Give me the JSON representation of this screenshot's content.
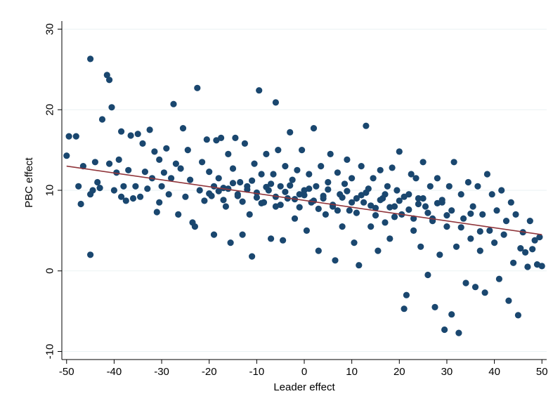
{
  "chart_data": {
    "type": "scatter",
    "title": "",
    "xlabel": "Leader effect",
    "ylabel": "PBC effect",
    "xlim": [
      -51,
      51
    ],
    "ylim": [
      -11,
      31
    ],
    "xticks": [
      -50,
      -40,
      -30,
      -20,
      -10,
      0,
      10,
      20,
      30,
      40,
      50
    ],
    "yticks": [
      -10,
      0,
      10,
      20,
      30
    ],
    "grid": true,
    "legend": "none",
    "colors": {
      "points": "#1a476f",
      "fit_line": "#90353b",
      "grid": "#eaf2f3",
      "axis": "#000000"
    },
    "fit_line": {
      "x": [
        -50,
        50
      ],
      "y": [
        13.0,
        4.5
      ]
    },
    "series": [
      {
        "type": "scatter",
        "points": [
          [
            -50,
            14.3
          ],
          [
            -49.5,
            16.7
          ],
          [
            -48,
            16.7
          ],
          [
            -47.5,
            10.5
          ],
          [
            -47,
            8.3
          ],
          [
            -46.5,
            13
          ],
          [
            -45,
            26.3
          ],
          [
            -45,
            2
          ],
          [
            -45,
            9.5
          ],
          [
            -44.5,
            10
          ],
          [
            -44,
            13.5
          ],
          [
            -43.5,
            11
          ],
          [
            -43,
            10.3
          ],
          [
            -42.5,
            18.8
          ],
          [
            -41.5,
            24.3
          ],
          [
            -41,
            23.7
          ],
          [
            -41,
            13.3
          ],
          [
            -40.5,
            20.3
          ],
          [
            -40,
            10
          ],
          [
            -39.5,
            12.2
          ],
          [
            -39,
            13.8
          ],
          [
            -38.5,
            17.3
          ],
          [
            -38.5,
            9.2
          ],
          [
            -38,
            10.5
          ],
          [
            -37.5,
            8.7
          ],
          [
            -37,
            12.5
          ],
          [
            -36.5,
            16.8
          ],
          [
            -36,
            9
          ],
          [
            -35.5,
            10.5
          ],
          [
            -35,
            17
          ],
          [
            -34.5,
            9.2
          ],
          [
            -34,
            15.8
          ],
          [
            -33.5,
            12.3
          ],
          [
            -33,
            10.2
          ],
          [
            -32.5,
            17.5
          ],
          [
            -32,
            11.5
          ],
          [
            -31.5,
            14.8
          ],
          [
            -31,
            7.3
          ],
          [
            -30.5,
            13.8
          ],
          [
            -30.5,
            8.5
          ],
          [
            -30,
            10.5
          ],
          [
            -29.5,
            12.2
          ],
          [
            -29,
            15.2
          ],
          [
            -28.5,
            9.5
          ],
          [
            -28,
            11.5
          ],
          [
            -27.5,
            20.7
          ],
          [
            -27,
            13.3
          ],
          [
            -26.5,
            7
          ],
          [
            -26,
            12.7
          ],
          [
            -25.5,
            17.7
          ],
          [
            -25,
            9.2
          ],
          [
            -24.5,
            15
          ],
          [
            -24,
            11.3
          ],
          [
            -23.5,
            6
          ],
          [
            -23,
            5.5
          ],
          [
            -22.5,
            22.7
          ],
          [
            -22,
            10
          ],
          [
            -21.5,
            13.5
          ],
          [
            -21,
            8.7
          ],
          [
            -20.5,
            16.3
          ],
          [
            -20,
            12.3
          ],
          [
            -19.5,
            9.3
          ],
          [
            -19,
            4.5
          ],
          [
            -18.5,
            16.2
          ],
          [
            -18,
            11.5
          ],
          [
            -17.5,
            16.5
          ],
          [
            -17,
            10.3
          ],
          [
            -16.5,
            8
          ],
          [
            -16,
            14.5
          ],
          [
            -15.5,
            3.5
          ],
          [
            -15,
            12.7
          ],
          [
            -14.5,
            16.5
          ],
          [
            -14,
            9.3
          ],
          [
            -13.5,
            11
          ],
          [
            -13,
            4.5
          ],
          [
            -12.5,
            15.8
          ],
          [
            -12,
            10.5
          ],
          [
            -11.5,
            7
          ],
          [
            -11,
            1.8
          ],
          [
            -10.5,
            13.3
          ],
          [
            -10,
            9.7
          ],
          [
            -9.5,
            22.4
          ],
          [
            -9,
            12
          ],
          [
            -8.5,
            8.5
          ],
          [
            -8,
            14.5
          ],
          [
            -7.5,
            10
          ],
          [
            -7,
            4
          ],
          [
            -6.5,
            12
          ],
          [
            -6,
            20.9
          ],
          [
            -6,
            8
          ],
          [
            -5.5,
            15
          ],
          [
            -5,
            10.5
          ],
          [
            -4.5,
            3.8
          ],
          [
            -4,
            13
          ],
          [
            -3.5,
            9
          ],
          [
            -3,
            17.2
          ],
          [
            -2.5,
            11.3
          ],
          [
            -2,
            6.5
          ],
          [
            -1.5,
            12.5
          ],
          [
            -1,
            9.5
          ],
          [
            -0.5,
            15
          ],
          [
            0,
            10
          ],
          [
            0.5,
            5
          ],
          [
            1,
            12
          ],
          [
            1.5,
            8.5
          ],
          [
            2,
            17.7
          ],
          [
            2.5,
            10.5
          ],
          [
            3,
            2.5
          ],
          [
            3.5,
            13
          ],
          [
            4,
            9
          ],
          [
            4.5,
            7
          ],
          [
            5,
            11
          ],
          [
            5.5,
            14.5
          ],
          [
            6,
            8
          ],
          [
            6.5,
            1.3
          ],
          [
            7,
            12.2
          ],
          [
            7.5,
            9.5
          ],
          [
            8,
            5.5
          ],
          [
            8.5,
            10.8
          ],
          [
            9,
            13.8
          ],
          [
            9.5,
            7.5
          ],
          [
            10,
            11.5
          ],
          [
            10.5,
            3.5
          ],
          [
            11,
            9
          ],
          [
            11.5,
            0.7
          ],
          [
            12,
            13
          ],
          [
            12.5,
            8.5
          ],
          [
            13,
            18
          ],
          [
            13.5,
            10.2
          ],
          [
            14,
            5.5
          ],
          [
            14.5,
            11.5
          ],
          [
            15,
            7.8
          ],
          [
            15.5,
            2.5
          ],
          [
            16,
            12.5
          ],
          [
            16.5,
            9
          ],
          [
            17,
            6
          ],
          [
            17.5,
            10.5
          ],
          [
            18,
            4
          ],
          [
            18.5,
            12.8
          ],
          [
            19,
            8
          ],
          [
            19.5,
            10
          ],
          [
            20,
            14.8
          ],
          [
            20.5,
            7
          ],
          [
            21,
            -4.7
          ],
          [
            21.5,
            -3
          ],
          [
            22,
            9.5
          ],
          [
            22.5,
            12
          ],
          [
            23,
            5
          ],
          [
            23.5,
            11.5
          ],
          [
            24,
            9
          ],
          [
            24.5,
            3
          ],
          [
            25,
            13.5
          ],
          [
            25.5,
            8
          ],
          [
            26,
            -0.5
          ],
          [
            26.5,
            10.5
          ],
          [
            27,
            6.5
          ],
          [
            27.5,
            -4.5
          ],
          [
            28,
            11.5
          ],
          [
            28.5,
            2
          ],
          [
            29,
            8.5
          ],
          [
            29.5,
            -7.3
          ],
          [
            30,
            5.5
          ],
          [
            30.5,
            10.5
          ],
          [
            31,
            -5.4
          ],
          [
            31.5,
            13.5
          ],
          [
            32,
            3
          ],
          [
            32.5,
            -7.7
          ],
          [
            33,
            9.5
          ],
          [
            33.5,
            6.5
          ],
          [
            34,
            -1.5
          ],
          [
            34.5,
            11
          ],
          [
            35,
            4
          ],
          [
            35.5,
            8
          ],
          [
            36,
            -2
          ],
          [
            36.5,
            10.5
          ],
          [
            37,
            2.5
          ],
          [
            37.5,
            7
          ],
          [
            38,
            -2.7
          ],
          [
            38.5,
            12
          ],
          [
            39,
            5
          ],
          [
            39.5,
            9.5
          ],
          [
            40,
            3.5
          ],
          [
            40.5,
            7.5
          ],
          [
            41,
            -1
          ],
          [
            41.5,
            10
          ],
          [
            42,
            4.5
          ],
          [
            42.5,
            6.2
          ],
          [
            43,
            -3.7
          ],
          [
            43.5,
            8.5
          ],
          [
            44,
            1
          ],
          [
            44.5,
            7
          ],
          [
            45,
            -5.5
          ],
          [
            45.5,
            2.8
          ],
          [
            46,
            4.8
          ],
          [
            46.5,
            2.3
          ],
          [
            47,
            0.5
          ],
          [
            47.5,
            6.2
          ],
          [
            48,
            2.7
          ],
          [
            48.5,
            3.8
          ],
          [
            49,
            0.8
          ],
          [
            49.5,
            4.2
          ],
          [
            50,
            0.6
          ],
          [
            -20,
            9.6
          ],
          [
            -18,
            9.9
          ],
          [
            -16,
            10.2
          ],
          [
            -14,
            9.5
          ],
          [
            -12,
            10.1
          ],
          [
            -10,
            9.1
          ],
          [
            -8,
            10.4
          ],
          [
            -6,
            9.2
          ],
          [
            -4,
            9.8
          ],
          [
            -2,
            8.9
          ],
          [
            0,
            9.4
          ],
          [
            2,
            8.7
          ],
          [
            4,
            9.3
          ],
          [
            6,
            8.2
          ],
          [
            8,
            9.1
          ],
          [
            10,
            8.5
          ],
          [
            12,
            9.4
          ],
          [
            14,
            8.1
          ],
          [
            16,
            8.8
          ],
          [
            18,
            7.9
          ],
          [
            20,
            8.7
          ],
          [
            22,
            7.6
          ],
          [
            24,
            8.3
          ],
          [
            26,
            7.2
          ],
          [
            28,
            8.4
          ],
          [
            30,
            6.9
          ],
          [
            -19,
            10.5
          ],
          [
            -17,
            8.8
          ],
          [
            -15,
            10.9
          ],
          [
            -13,
            8.6
          ],
          [
            -11,
            11.2
          ],
          [
            -9,
            8.4
          ],
          [
            -7,
            10.8
          ],
          [
            -5,
            8.2
          ],
          [
            -3,
            10.6
          ],
          [
            -1,
            7.9
          ],
          [
            1,
            10.2
          ],
          [
            3,
            7.7
          ],
          [
            5,
            10.1
          ],
          [
            7,
            7.5
          ],
          [
            9,
            9.9
          ],
          [
            11,
            7.2
          ],
          [
            13,
            9.7
          ],
          [
            15,
            6.9
          ],
          [
            17,
            9.5
          ],
          [
            19,
            6.7
          ],
          [
            21,
            9.2
          ],
          [
            23,
            6.5
          ],
          [
            25,
            9
          ],
          [
            27,
            6.2
          ],
          [
            29,
            8.8
          ],
          [
            31,
            7.5
          ],
          [
            33,
            5.4
          ],
          [
            35,
            7.1
          ],
          [
            37,
            4.9
          ]
        ]
      }
    ]
  }
}
